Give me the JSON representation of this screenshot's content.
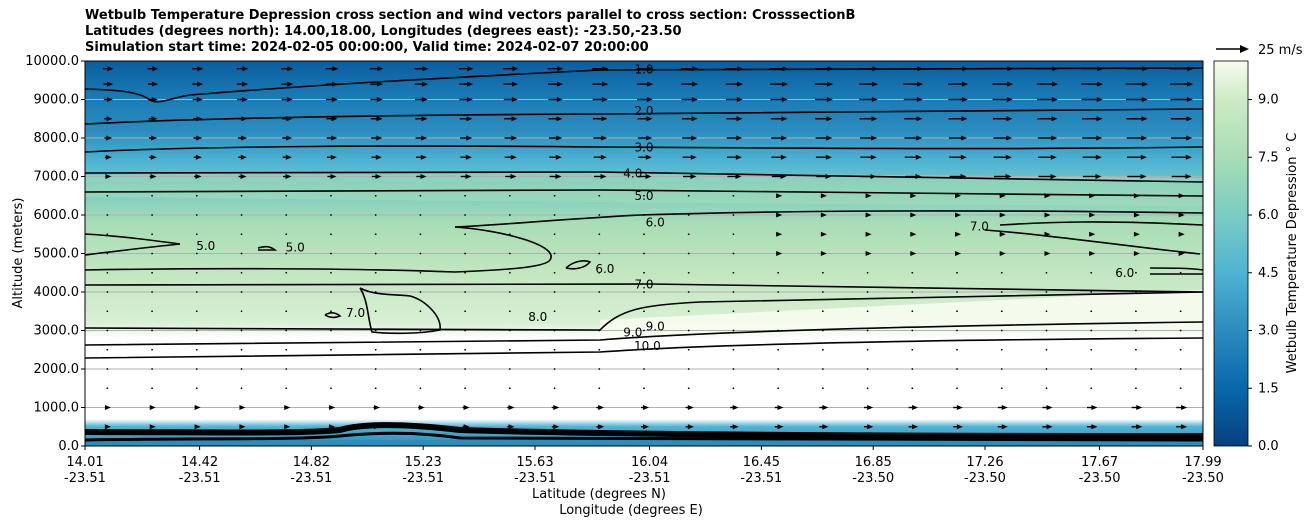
{
  "chart_data": {
    "type": "contour",
    "title_lines": [
      "Wetbulb Temperature Depression cross section and wind vectors parallel to cross section: CrosssectionB",
      "Latitudes (degrees north): 14.00,18.00, Longitudes (degrees east): -23.50,-23.50",
      "Simulation start time: 2024-02-05 00:00:00, Valid time: 2024-02-07 20:00:00"
    ],
    "ylabel": "Altitude (meters)",
    "xlabel_lat": "Latitude (degrees N)",
    "xlabel_lon": "Longitude (degrees E)",
    "ylim": [
      0,
      10000
    ],
    "yticks": [
      "0.0",
      "1000.0",
      "2000.0",
      "3000.0",
      "4000.0",
      "5000.0",
      "6000.0",
      "7000.0",
      "8000.0",
      "9000.0",
      "10000.0"
    ],
    "ytick_values": [
      0,
      1000,
      2000,
      3000,
      4000,
      5000,
      6000,
      7000,
      8000,
      9000,
      10000
    ],
    "x_fractions": [
      0,
      0.1025,
      0.2025,
      0.3025,
      0.4025,
      0.505,
      0.605,
      0.705,
      0.805,
      0.9075,
      1.0
    ],
    "xticks_lat": [
      "14.01",
      "14.42",
      "14.82",
      "15.23",
      "15.63",
      "16.04",
      "16.45",
      "16.85",
      "17.26",
      "17.67",
      "17.99"
    ],
    "xticks_lon": [
      "-23.51",
      "-23.51",
      "-23.51",
      "-23.51",
      "-23.51",
      "-23.51",
      "-23.51",
      "-23.50",
      "-23.50",
      "-23.50",
      "-23.50"
    ],
    "colorbar": {
      "label": "Wetbulb Temperature Depression ° C",
      "range": [
        0,
        10
      ],
      "ticks": [
        "0.0",
        "1.5",
        "3.0",
        "4.5",
        "6.0",
        "7.5",
        "9.0"
      ],
      "tick_values": [
        0,
        1.5,
        3.0,
        4.5,
        6.0,
        7.5,
        9.0
      ]
    },
    "contour_labels": [
      {
        "text": "1.0",
        "x": 0.5,
        "y": 9780
      },
      {
        "text": "2.0",
        "x": 0.5,
        "y": 8700
      },
      {
        "text": "3.0",
        "x": 0.5,
        "y": 7750
      },
      {
        "text": "4.0",
        "x": 0.49,
        "y": 7080
      },
      {
        "text": "5.0",
        "x": 0.5,
        "y": 6500
      },
      {
        "text": "6.0",
        "x": 0.51,
        "y": 5800
      },
      {
        "text": "5.0",
        "x": 0.108,
        "y": 5200
      },
      {
        "text": "5.0",
        "x": 0.188,
        "y": 5150
      },
      {
        "text": "6.0",
        "x": 0.465,
        "y": 4600
      },
      {
        "text": "7.0",
        "x": 0.5,
        "y": 4200
      },
      {
        "text": "7.0",
        "x": 0.242,
        "y": 3450
      },
      {
        "text": "8.0",
        "x": 0.405,
        "y": 3350
      },
      {
        "text": "9.0",
        "x": 0.49,
        "y": 2950
      },
      {
        "text": "9.0",
        "x": 0.51,
        "y": 3100
      },
      {
        "text": "10.0",
        "x": 0.503,
        "y": 2600
      },
      {
        "text": "7.0",
        "x": 0.8,
        "y": 5700
      },
      {
        "text": "6.0",
        "x": 0.93,
        "y": 4500
      }
    ],
    "wind_reference": "25 m/s"
  }
}
